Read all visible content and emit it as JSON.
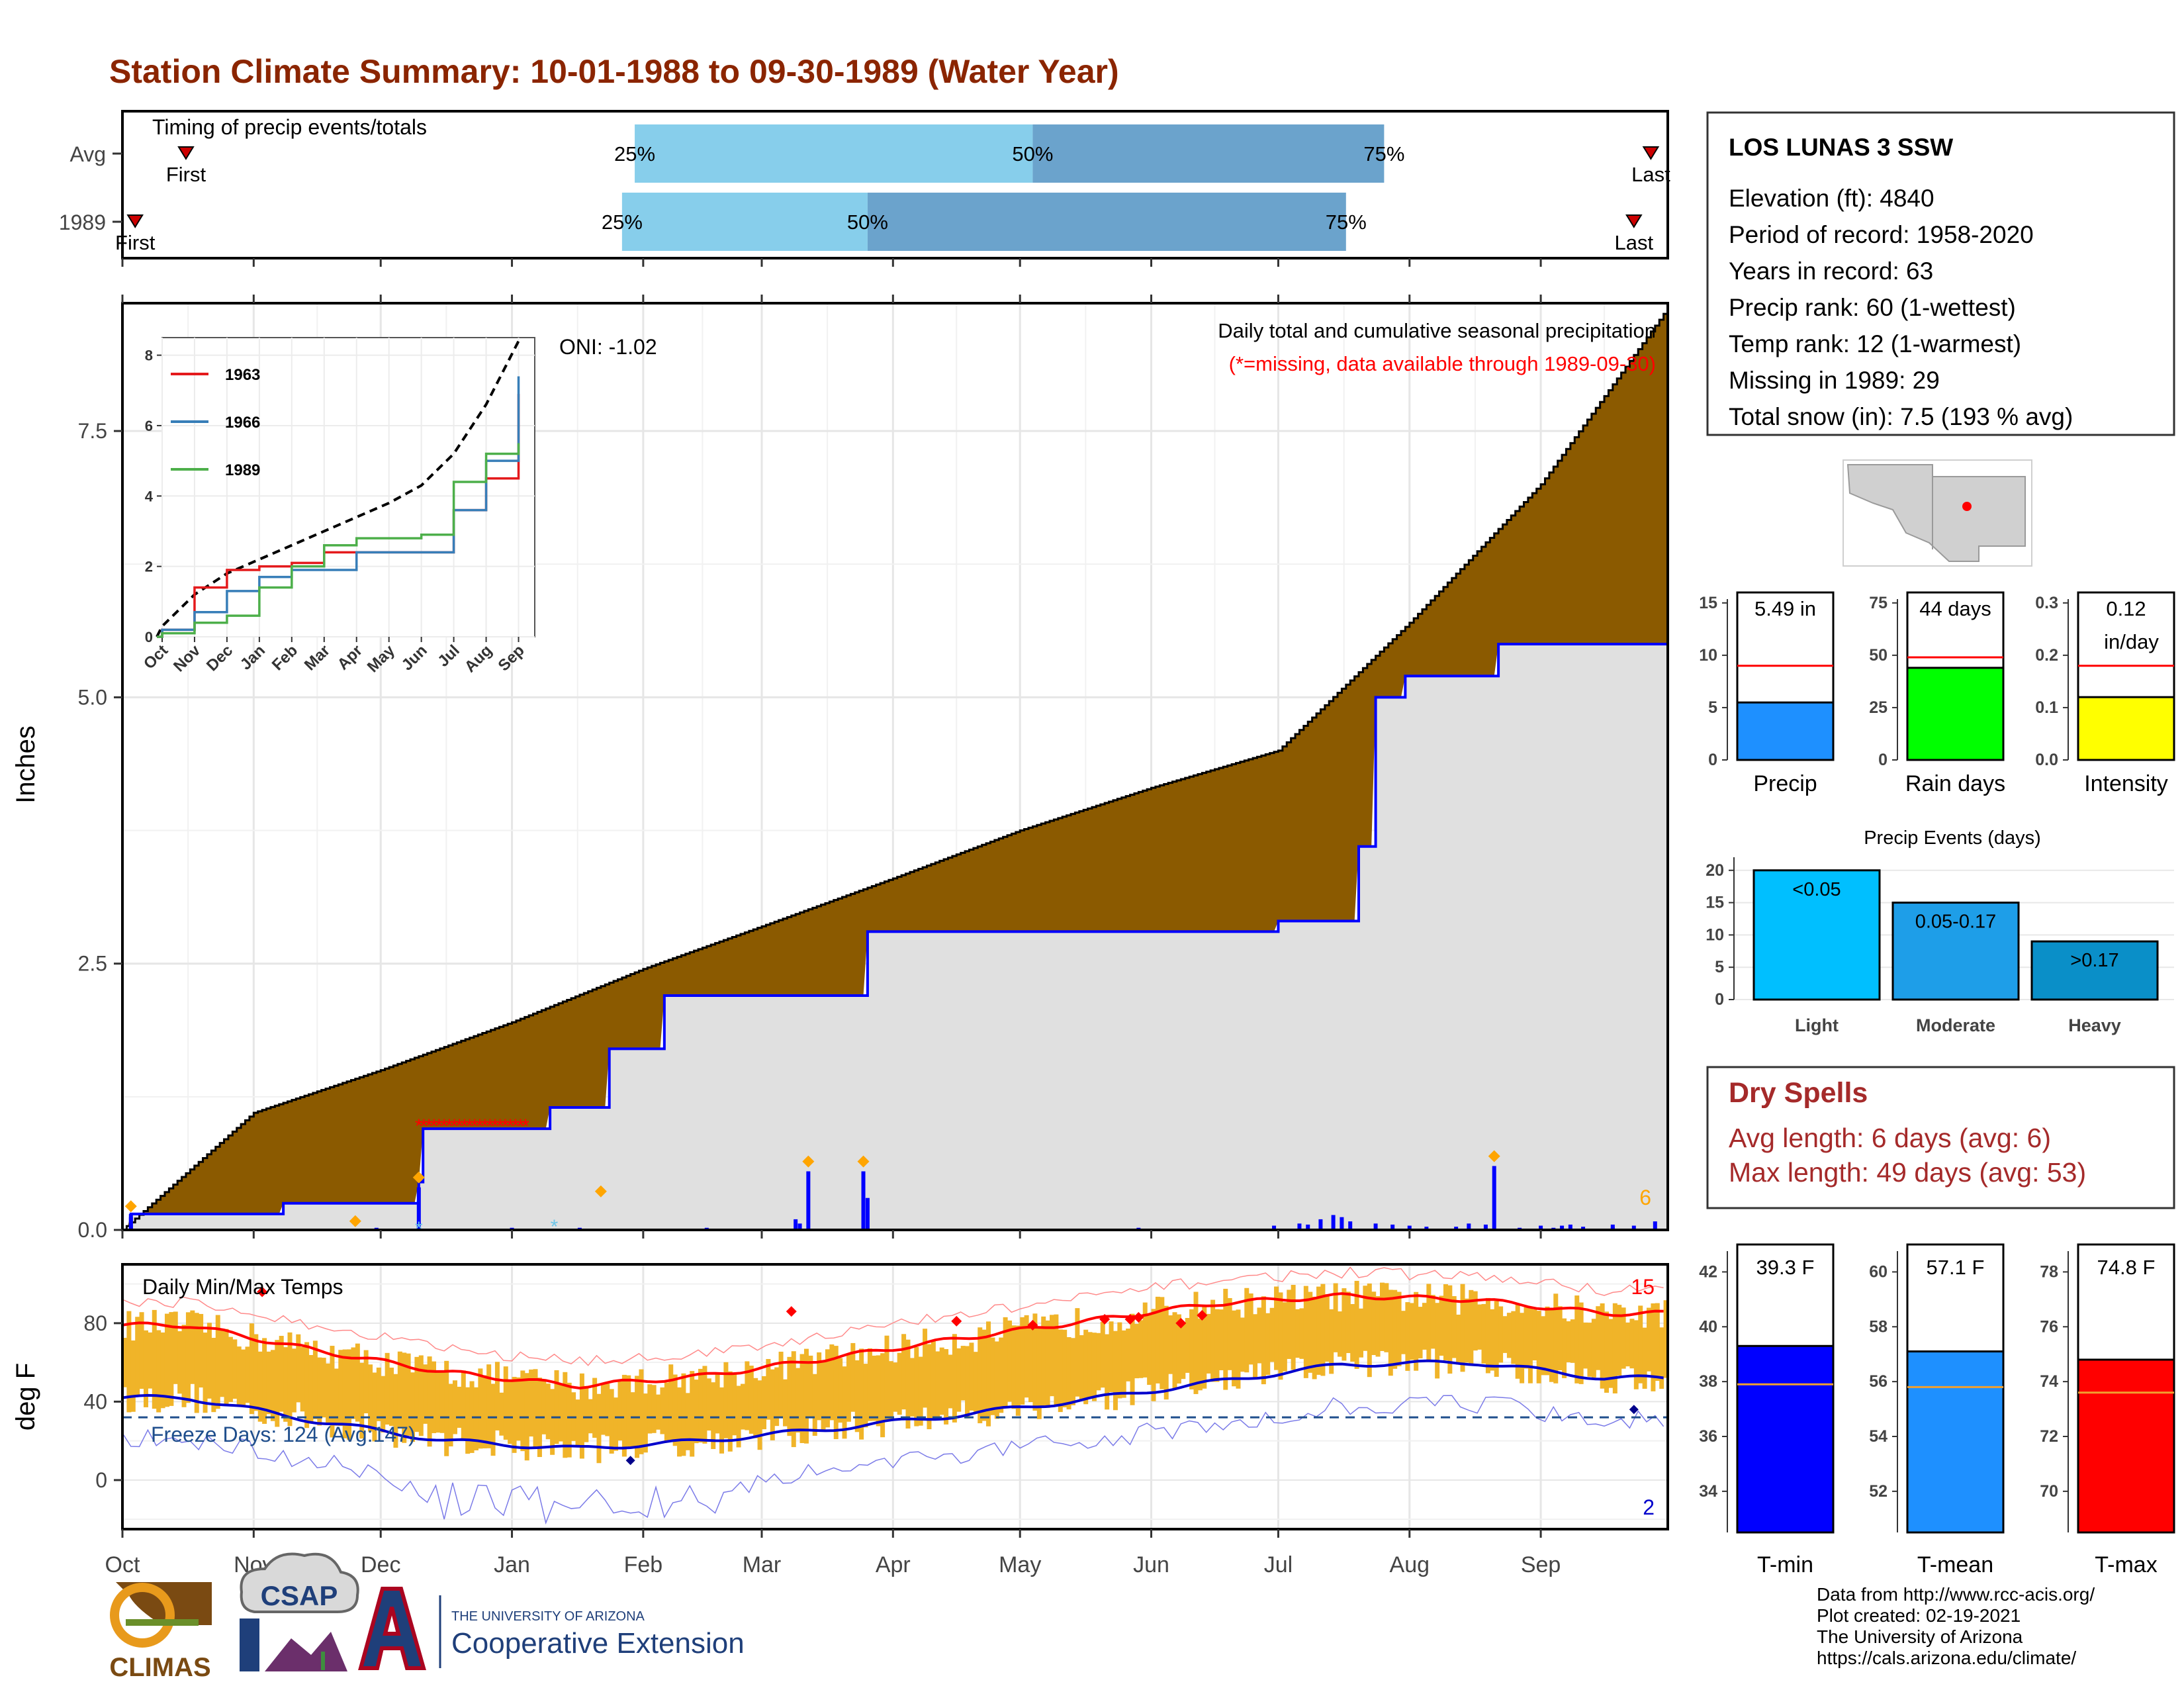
{
  "title": "Station Climate Summary: 10-01-1988 to 09-30-1989 (Water Year)",
  "colors": {
    "title": "#8B2500",
    "brown": "#8B5A00",
    "gray_fill": "#E0E0E0",
    "blue": "#0000FF",
    "red": "#FF0000",
    "orange": "#FFA500",
    "gold": "#F0B429",
    "light_blue": "#87CEEB",
    "mid_blue": "#6BA3CC",
    "dry_red": "#A52A2A"
  },
  "timing": {
    "title": "Timing of precip events/totals",
    "rows": [
      {
        "label": "Avg",
        "first_label": "First",
        "last_label": "Last",
        "first_date": "1988-10-16",
        "last_date": "1989-09-27",
        "p25_date": "1989-01-30",
        "p50_date": "1989-05-04",
        "p75_date": "1989-07-26",
        "p25_label": "25%",
        "p50_label": "50%",
        "p75_label": "75%"
      },
      {
        "label": "1989",
        "first_label": "First",
        "last_label": "Last",
        "first_date": "1988-10-04",
        "last_date": "1989-09-23",
        "p25_date": "1989-01-27",
        "p50_date": "1989-03-26",
        "p75_date": "1989-07-17",
        "p25_label": "25%",
        "p50_label": "50%",
        "p75_label": "75%"
      }
    ]
  },
  "precip_panel": {
    "header_line1": "Daily total and cumulative seasonal precipitation",
    "header_line2": "(*=missing, data available through 1989-09-30)",
    "oni_label": "ONI: -1.02",
    "ylabel": "Inches",
    "yticks": [
      "0.0",
      "2.5",
      "5.0",
      "7.5"
    ],
    "count_label": "6"
  },
  "inset": {
    "yticks": [
      "0",
      "2",
      "4",
      "6",
      "8"
    ],
    "months": [
      "Oct",
      "Nov",
      "Dec",
      "Jan",
      "Feb",
      "Mar",
      "Apr",
      "May",
      "Jun",
      "Jul",
      "Aug",
      "Sep"
    ],
    "legend": [
      {
        "name": "1963",
        "color": "#E41A1C"
      },
      {
        "name": "1966",
        "color": "#377EB8"
      },
      {
        "name": "1989",
        "color": "#4DAF4A"
      }
    ]
  },
  "temp_panel": {
    "title": "Daily Min/Max Temps",
    "ylabel": "deg F",
    "yticks": [
      "0",
      "40",
      "80"
    ],
    "freeze_label": "Freeze Days: 124 (Avg:147)",
    "hot_count": "15",
    "cold_count": "2"
  },
  "months_axis": [
    "Oct",
    "Nov",
    "Dec",
    "Jan",
    "Feb",
    "Mar",
    "Apr",
    "May",
    "Jun",
    "Jul",
    "Aug",
    "Sep"
  ],
  "station": {
    "name": "LOS LUNAS 3 SSW",
    "lines": [
      "Elevation (ft): 4840",
      "Period of record: 1958-2020",
      "Years in record: 63",
      "Precip rank: 60 (1-wettest)",
      "Temp rank: 12 (1-warmest)",
      "Missing in 1989: 29",
      "Total snow (in): 7.5 (193 % avg)"
    ]
  },
  "summary_bars": [
    {
      "label": "Precip",
      "value_line1": "5.49 in",
      "value_line2": "",
      "yticks": [
        "0",
        "5",
        "10",
        "15"
      ]
    },
    {
      "label": "Rain days",
      "value_line1": "44 days",
      "value_line2": "",
      "yticks": [
        "0",
        "25",
        "50",
        "75"
      ]
    },
    {
      "label": "Intensity",
      "value_line1": "0.12",
      "value_line2": "in/day",
      "yticks": [
        "0.0",
        "0.1",
        "0.2",
        "0.3"
      ]
    }
  ],
  "precip_events": {
    "title": "Precip Events (days)",
    "yticks": [
      "0",
      "5",
      "10",
      "15",
      "20"
    ],
    "bars": [
      {
        "label": "Light",
        "inner": "<0.05"
      },
      {
        "label": "Moderate",
        "inner": "0.05-0.17"
      },
      {
        "label": "Heavy",
        "inner": ">0.17"
      }
    ]
  },
  "dry_spells": {
    "title": "Dry Spells",
    "line1": "Avg length: 6 days (avg: 6)",
    "line2": "Max length: 49 days (avg: 53)"
  },
  "temp_bars": [
    {
      "label": "T-min",
      "value": "39.3 F",
      "yticks": [
        "34",
        "36",
        "38",
        "40",
        "42"
      ]
    },
    {
      "label": "T-mean",
      "value": "57.1 F",
      "yticks": [
        "52",
        "54",
        "56",
        "58",
        "60"
      ]
    },
    {
      "label": "T-max",
      "value": "74.8 F",
      "yticks": [
        "70",
        "72",
        "74",
        "76",
        "78"
      ]
    }
  ],
  "credits": [
    "Data from http://www.rcc-acis.org/",
    "Plot created: 02-19-2021",
    "The University of Arizona",
    "https://cals.arizona.edu/climate/"
  ],
  "logos": {
    "climas": "CLIMAS",
    "csap": "CSAP",
    "ua_line1": "THE UNIVERSITY OF ARIZONA",
    "ua_line2": "Cooperative Extension"
  },
  "chart_data": [
    {
      "type": "area",
      "title": "Daily total and cumulative seasonal precipitation",
      "ylabel": "Inches",
      "ylim": [
        0,
        8.7
      ],
      "series": [
        {
          "name": "",
          "x": [
            "1988-10-01",
            "1988-11-01",
            "1988-12-01",
            "1989-01-01",
            "1989-02-01",
            "1989-03-01",
            "1989-04-01",
            "1989-05-01",
            "1989-06-01",
            "1989-07-01",
            "1989-08-01",
            "1989-09-01",
            "1989-09-30"
          ],
          "values": [
            0.0,
            1.1,
            1.5,
            1.95,
            2.45,
            2.85,
            3.3,
            3.75,
            4.15,
            4.5,
            5.7,
            7.0,
            8.6
          ]
        },
        {
          "name": "",
          "x": [
            "1988-10-01",
            "1988-10-03",
            "1988-11-08",
            "1988-12-10",
            "1988-12-11",
            "1989-01-10",
            "1989-01-24",
            "1989-02-06",
            "1989-03-26",
            "1989-07-01",
            "1989-07-20",
            "1989-07-24",
            "1989-07-31",
            "1989-08-22",
            "1989-09-30"
          ],
          "values": [
            0.0,
            0.15,
            0.25,
            0.45,
            0.95,
            1.15,
            1.7,
            2.2,
            2.8,
            2.9,
            3.6,
            5.0,
            5.2,
            5.5,
            5.5
          ]
        }
      ]
    },
    {
      "type": "line",
      "categories": [
        "Oct",
        "Nov",
        "Dec",
        "Jan",
        "Feb",
        "Mar",
        "Apr",
        "May",
        "Jun",
        "Jul",
        "Aug",
        "Sep"
      ],
      "ylim": [
        0,
        8.5
      ],
      "series": [
        {
          "name": "",
          "values": [
            0.3,
            1.2,
            1.8,
            2.2,
            2.6,
            3.0,
            3.4,
            3.8,
            4.3,
            5.2,
            6.6,
            8.4
          ]
        },
        {
          "name": "1963",
          "values": [
            0.2,
            1.4,
            1.9,
            2.0,
            2.1,
            2.4,
            2.4,
            2.4,
            2.4,
            3.6,
            4.5,
            6.9
          ]
        },
        {
          "name": "1966",
          "values": [
            0.2,
            0.7,
            1.3,
            1.7,
            1.9,
            1.9,
            2.4,
            2.4,
            2.4,
            3.6,
            5.0,
            7.4
          ]
        },
        {
          "name": "1989",
          "values": [
            0.1,
            0.4,
            0.6,
            1.4,
            2.0,
            2.6,
            2.8,
            2.8,
            2.9,
            4.4,
            5.2,
            5.5
          ]
        }
      ]
    },
    {
      "type": "line",
      "title": "Daily Min/Max Temps",
      "ylabel": "deg F",
      "categories": [
        "Oct",
        "Nov",
        "Dec",
        "Jan",
        "Feb",
        "Mar",
        "Apr",
        "May",
        "Jun",
        "Jul",
        "Aug",
        "Sep"
      ],
      "ylim": [
        -25,
        110
      ],
      "series": [
        {
          "name": "",
          "values": [
            79,
            66,
            55,
            48,
            53,
            62,
            72,
            81,
            90,
            94,
            92,
            85
          ]
        },
        {
          "name": "",
          "values": [
            42,
            30,
            20,
            16,
            20,
            26,
            33,
            41,
            50,
            59,
            60,
            52
          ]
        }
      ],
      "freeze_threshold": 32
    },
    {
      "type": "bar",
      "categories": [
        "Precip"
      ],
      "values": [
        5.49
      ],
      "avg": 9.0,
      "ylim": [
        0,
        16
      ]
    },
    {
      "type": "bar",
      "categories": [
        "Rain days"
      ],
      "values": [
        44
      ],
      "avg": 49,
      "ylim": [
        0,
        80
      ]
    },
    {
      "type": "bar",
      "categories": [
        "Intensity"
      ],
      "values": [
        0.12
      ],
      "avg": 0.18,
      "ylim": [
        0,
        0.32
      ]
    },
    {
      "type": "bar",
      "title": "Precip Events (days)",
      "categories": [
        "Light",
        "Moderate",
        "Heavy"
      ],
      "values": [
        20,
        15,
        9
      ],
      "ylim": [
        0,
        21
      ]
    },
    {
      "type": "bar",
      "categories": [
        "T-min"
      ],
      "values": [
        39.3
      ],
      "avg": 37.9,
      "ylim": [
        32.5,
        43
      ]
    },
    {
      "type": "bar",
      "categories": [
        "T-mean"
      ],
      "values": [
        57.1
      ],
      "avg": 55.8,
      "ylim": [
        50.5,
        61
      ]
    },
    {
      "type": "bar",
      "categories": [
        "T-max"
      ],
      "values": [
        74.8
      ],
      "avg": 73.6,
      "ylim": [
        68.5,
        79
      ]
    }
  ]
}
